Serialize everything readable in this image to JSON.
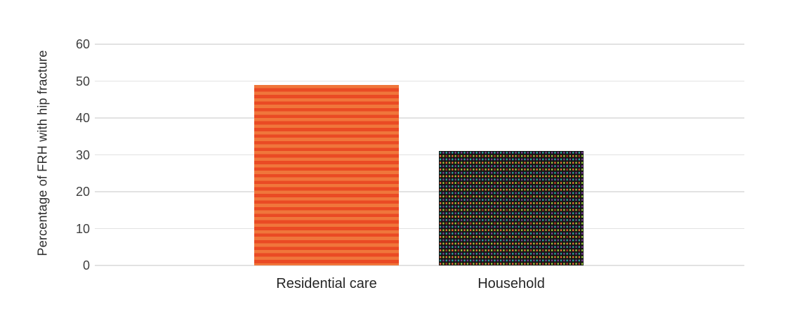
{
  "figure": {
    "background": "#ffffff"
  },
  "chart_data": {
    "type": "bar",
    "title": "",
    "xlabel": "",
    "ylabel": "Percentage of FRH with hip fracture",
    "categories": [
      "Residential care",
      "Household"
    ],
    "values": [
      49,
      31
    ],
    "ylim": [
      0,
      60
    ],
    "yticks": [
      0,
      10,
      20,
      30,
      40,
      50,
      60
    ],
    "grid": "horizontal",
    "gridline_color": "#e2e2e2",
    "legend": "none",
    "tick_label_color": "#404040",
    "category_label_color": "#262626",
    "bar_styles": [
      {
        "pattern": "horizontal-stripes",
        "stripe_colors": [
          "#f0763b",
          "#ea4a24"
        ]
      },
      {
        "pattern": "multicolor-dots-on-black",
        "background": "#141414",
        "dot_colors": [
          "#29a69e",
          "#7e3f97",
          "#f1683c",
          "#9aca3c",
          "#a33327"
        ]
      }
    ]
  }
}
